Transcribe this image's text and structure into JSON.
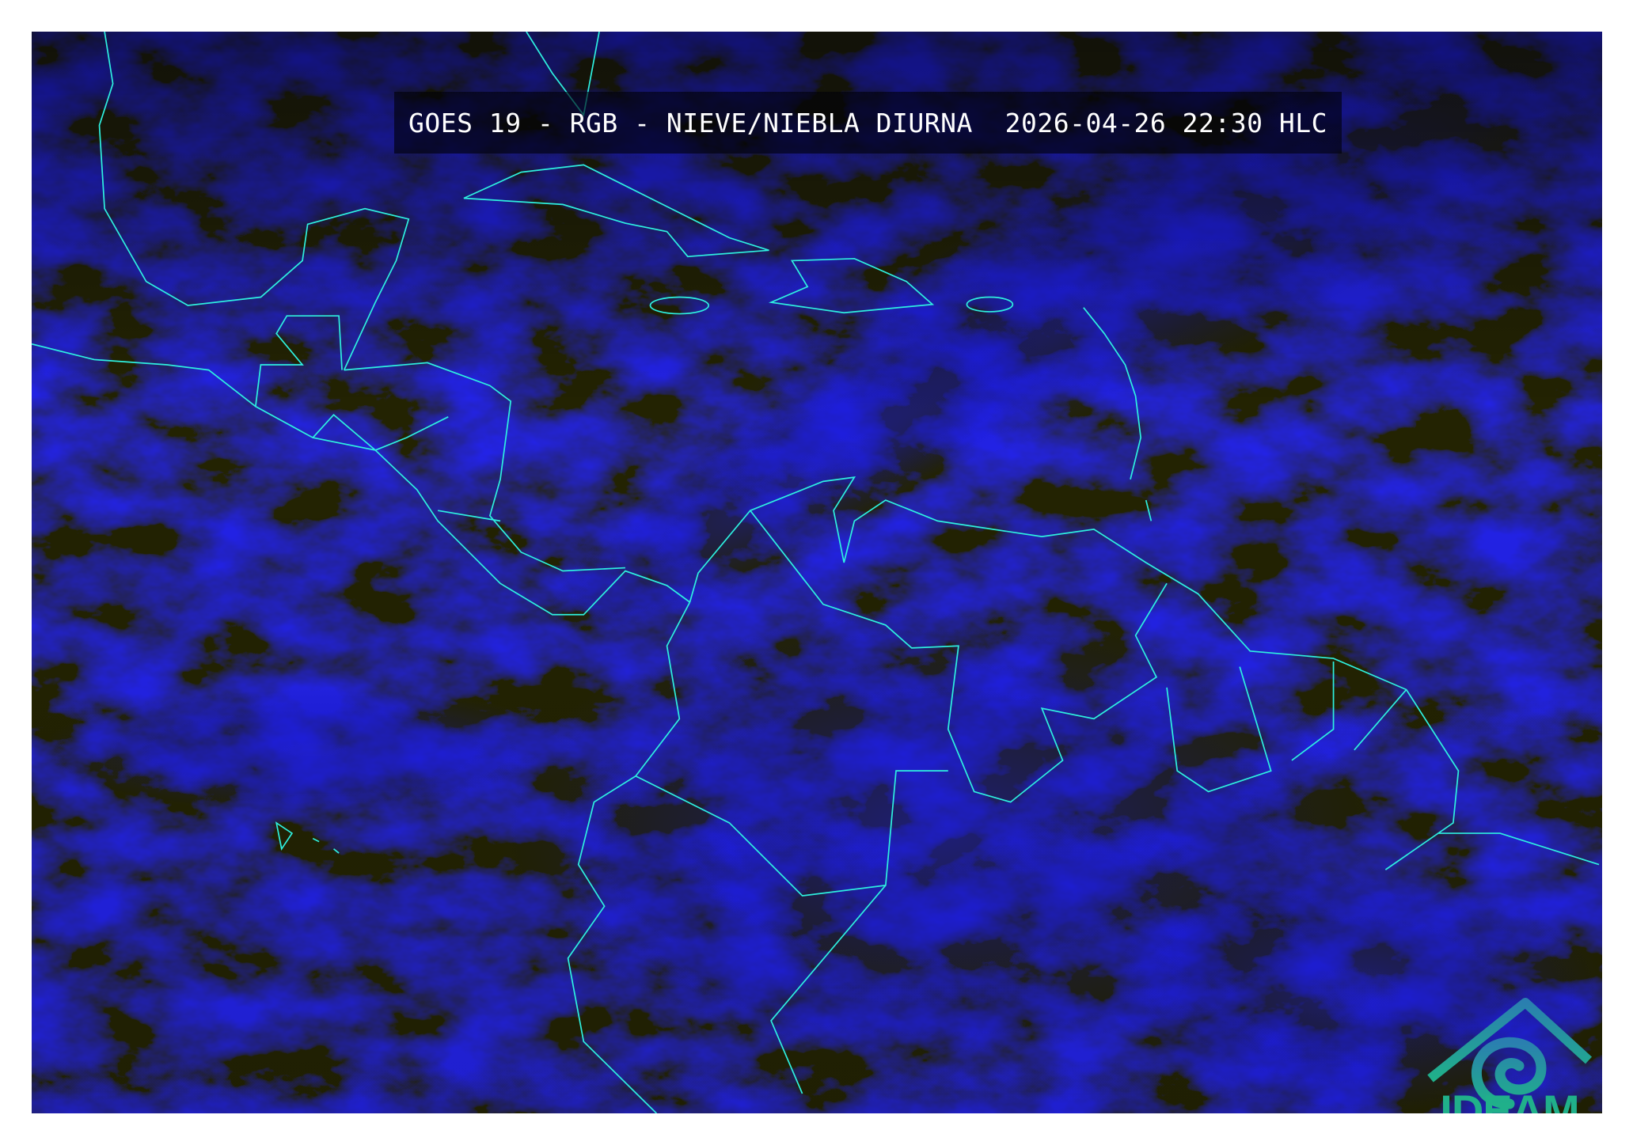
{
  "title": {
    "product": "GOES 19 - RGB - NIEVE/NIEBLA DIURNA",
    "timestamp": "2026-04-26 22:30 HLC",
    "full": "GOES 19 - RGB - NIEVE/NIEBLA DIURNA  2026-04-26 22:30 HLC"
  },
  "logo": {
    "text": "IDEAM",
    "color": "#20b08a",
    "roof_color": "#2a86a8"
  },
  "colors": {
    "background": "#02021a",
    "cloud": "#1a1aff",
    "coastline": "#2ef0e0"
  }
}
